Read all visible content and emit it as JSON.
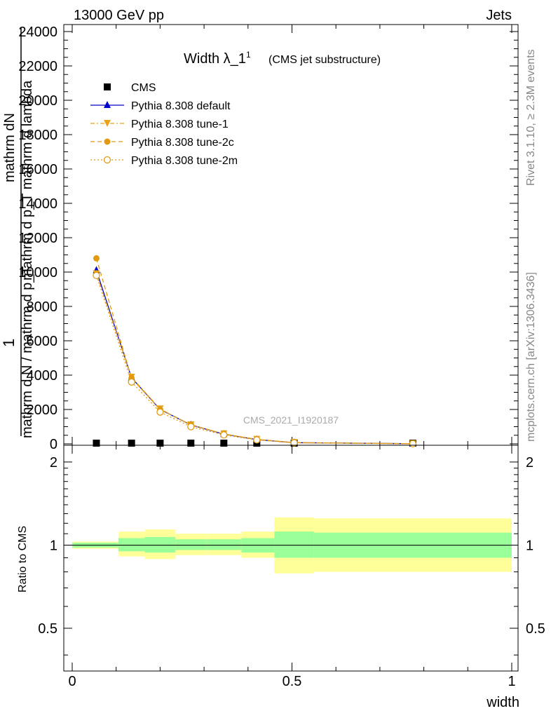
{
  "header": {
    "process": "13000 GeV pp",
    "category": "Jets"
  },
  "side_labels": {
    "rivet": "Rivet 3.1.10, ≥ 2.3M events",
    "mcplots": "mcplots.cern.ch [arXiv:1306.3436]"
  },
  "watermark": "CMS_2021_I1920187",
  "chart_data": [
    {
      "type": "line",
      "title": "Width λ_1",
      "title_sup": "1",
      "subtitle": "(CMS jet substructure)",
      "ylabel_numerator": "mathrm dN",
      "ylabel_fraction_top": "mathrm d p_T mathrm d lambda",
      "ylabel_one": "1",
      "ylabel_denominator": "mathrm d N / mathrm d p_T",
      "xlim": [
        0,
        1
      ],
      "ylim": [
        0,
        24000
      ],
      "y_ticks": [
        0,
        2000,
        4000,
        6000,
        8000,
        10000,
        12000,
        14000,
        16000,
        18000,
        20000,
        22000,
        24000
      ],
      "y_tick_labels": [
        "0",
        "2000",
        "4000",
        "6000",
        "8000",
        "10000",
        "12000",
        "14000",
        "16000",
        "18000",
        "20000",
        "22000",
        "24000"
      ],
      "legend_position": "top-left",
      "series": [
        {
          "name": "CMS",
          "color": "#000000",
          "marker": "square",
          "x": [
            0.055,
            0.135,
            0.2,
            0.27,
            0.345,
            0.42,
            0.505,
            0.775
          ],
          "y": [
            0,
            0,
            0,
            0,
            0,
            0,
            0,
            0
          ]
        },
        {
          "name": "Pythia 8.308 default",
          "color": "#0000cc",
          "marker": "triangle-up",
          "line": "solid",
          "x": [
            0.055,
            0.135,
            0.2,
            0.27,
            0.345,
            0.42,
            0.505,
            0.775
          ],
          "y": [
            10100,
            3850,
            2000,
            1100,
            560,
            250,
            70,
            10
          ]
        },
        {
          "name": "Pythia 8.308 tune-1",
          "color": "#e8a317",
          "marker": "triangle-down",
          "line": "dashdot",
          "x": [
            0.055,
            0.135,
            0.2,
            0.27,
            0.345,
            0.42,
            0.505,
            0.775
          ],
          "y": [
            9900,
            3880,
            2030,
            1100,
            580,
            260,
            75,
            10
          ]
        },
        {
          "name": "Pythia 8.308 tune-2c",
          "color": "#e09b12",
          "marker": "circle",
          "line": "dashed",
          "x": [
            0.055,
            0.135,
            0.2,
            0.27,
            0.345,
            0.42,
            0.505,
            0.775
          ],
          "y": [
            10800,
            3820,
            2000,
            1120,
            570,
            260,
            70,
            10
          ]
        },
        {
          "name": "Pythia 8.308 tune-2m",
          "color": "#e09b12",
          "marker": "open-circle",
          "line": "dotted",
          "x": [
            0.055,
            0.135,
            0.2,
            0.27,
            0.345,
            0.42,
            0.505,
            0.775
          ],
          "y": [
            9800,
            3600,
            1850,
            1000,
            520,
            230,
            60,
            10
          ]
        }
      ]
    },
    {
      "type": "area",
      "ylabel": "Ratio to CMS",
      "xlabel": "width",
      "xlim": [
        0,
        1
      ],
      "ylim": [
        0.35,
        2.3
      ],
      "y_scale": "log",
      "y_ticks": [
        0.5,
        1,
        2
      ],
      "y_tick_labels": [
        "0.5",
        "1",
        "2"
      ],
      "x_ticks": [
        0,
        0.5,
        1
      ],
      "x_tick_labels": [
        "0",
        "0.5",
        "1"
      ],
      "reference_line": 1,
      "bands": [
        {
          "x_low": 0.0,
          "x_high": 0.105,
          "stat_low": 0.98,
          "stat_high": 1.02,
          "total_low": 0.97,
          "total_high": 1.03
        },
        {
          "x_low": 0.105,
          "x_high": 0.165,
          "stat_low": 0.95,
          "stat_high": 1.06,
          "total_low": 0.91,
          "total_high": 1.12
        },
        {
          "x_low": 0.165,
          "x_high": 0.235,
          "stat_low": 0.94,
          "stat_high": 1.07,
          "total_low": 0.89,
          "total_high": 1.14
        },
        {
          "x_low": 0.235,
          "x_high": 0.305,
          "stat_low": 0.96,
          "stat_high": 1.05,
          "total_low": 0.92,
          "total_high": 1.1
        },
        {
          "x_low": 0.305,
          "x_high": 0.385,
          "stat_low": 0.96,
          "stat_high": 1.05,
          "total_low": 0.92,
          "total_high": 1.1
        },
        {
          "x_low": 0.385,
          "x_high": 0.46,
          "stat_low": 0.94,
          "stat_high": 1.06,
          "total_low": 0.9,
          "total_high": 1.12
        },
        {
          "x_low": 0.46,
          "x_high": 0.55,
          "stat_low": 0.9,
          "stat_high": 1.12,
          "total_low": 0.79,
          "total_high": 1.26
        },
        {
          "x_low": 0.55,
          "x_high": 1.0,
          "stat_low": 0.9,
          "stat_high": 1.11,
          "total_low": 0.8,
          "total_high": 1.25
        }
      ],
      "band_colors": {
        "stat": "#99ff99",
        "total": "#ffff99"
      }
    }
  ]
}
